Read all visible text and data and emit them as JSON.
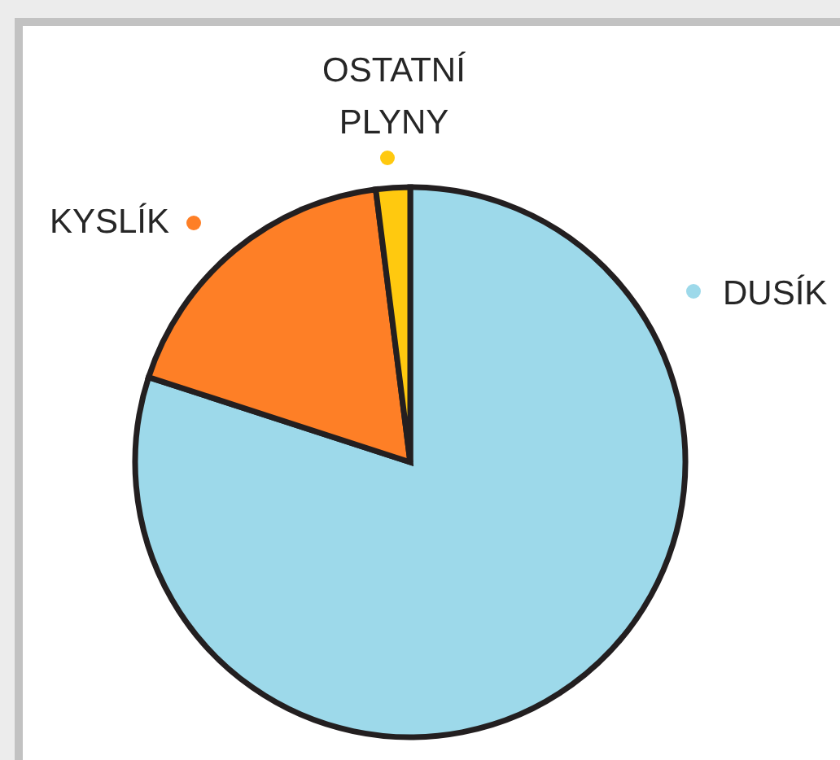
{
  "chart_data": {
    "type": "pie",
    "categories": [
      "DUSÍK",
      "KYSLÍK",
      "OSTATNÍ PLYNY"
    ],
    "values": [
      80,
      18,
      2
    ],
    "colors": [
      "#9dd9ea",
      "#fe7f26",
      "#ffc90f"
    ]
  }
}
